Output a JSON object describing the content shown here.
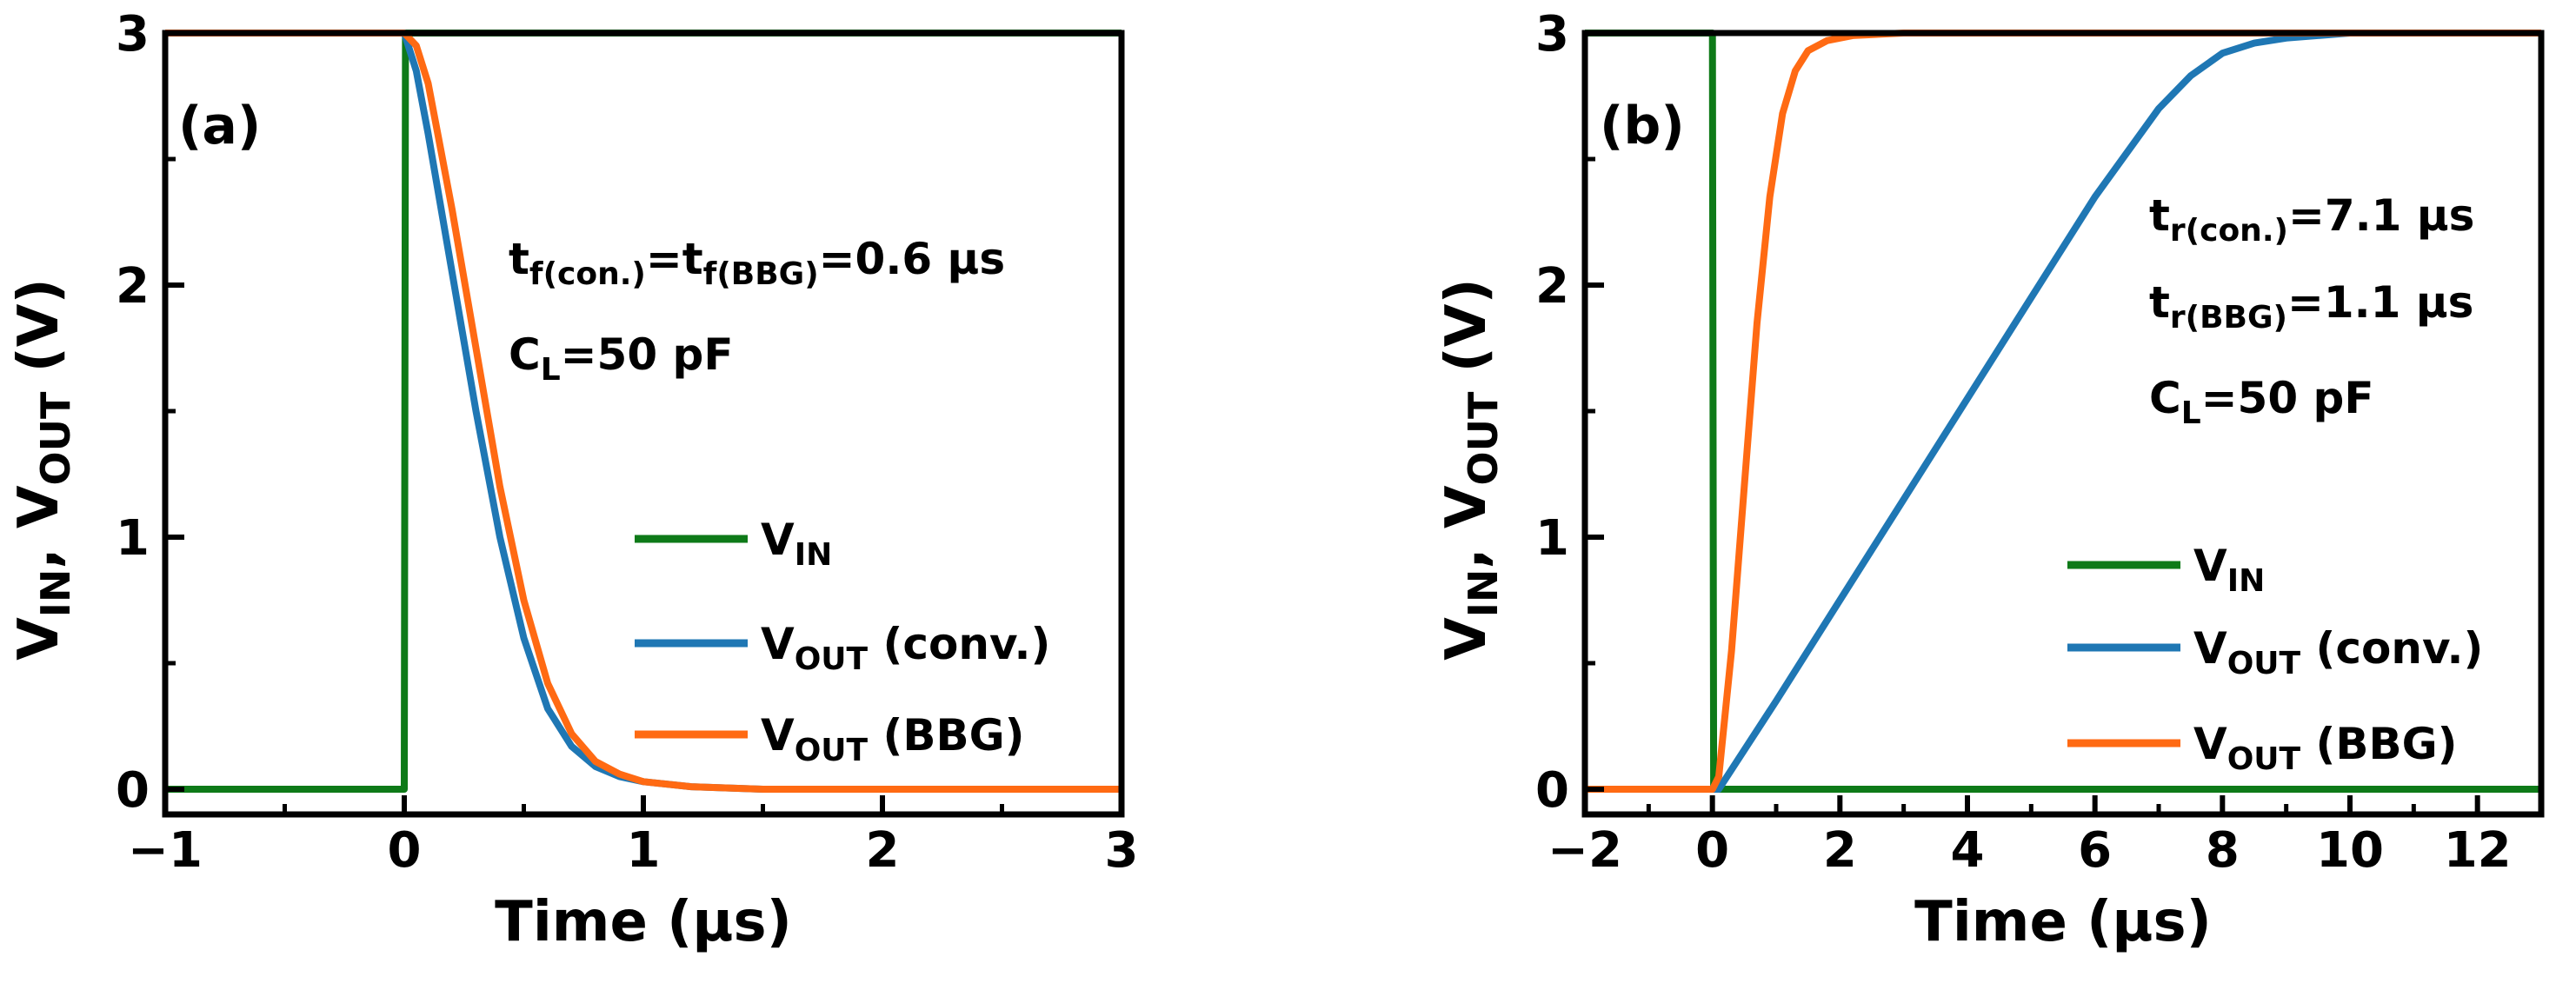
{
  "chart_data": [
    {
      "type": "line",
      "panel_label": "(a)",
      "xlabel": "Time (μs)",
      "ylabel": {
        "p1": "V",
        "s1": "IN",
        "p2": ", V",
        "s2": "OUT",
        "p3": " (V)"
      },
      "xlim": [
        -1,
        3
      ],
      "ylim": [
        -0.1,
        3.0
      ],
      "xticks": [
        -1,
        0,
        1,
        2,
        3
      ],
      "xtick_labels": [
        "−1",
        "0",
        "1",
        "2",
        "3"
      ],
      "yticks": [
        0,
        1,
        2,
        3
      ],
      "ytick_labels": [
        "0",
        "1",
        "2",
        "3"
      ],
      "grid": false,
      "legend_position": "lower-right",
      "annotations": [
        [
          {
            "t": "t"
          },
          {
            "t": "f(con.)",
            "sub": true
          },
          {
            "t": "=t"
          },
          {
            "t": "f(BBG)",
            "sub": true
          },
          {
            "t": "=0.6 μs"
          }
        ],
        [
          {
            "t": "C"
          },
          {
            "t": "L",
            "sub": true
          },
          {
            "t": "=50 pF"
          }
        ]
      ],
      "series": [
        {
          "legend": [
            {
              "t": "V"
            },
            {
              "t": "IN",
              "sub": true
            }
          ],
          "color": "#0e7a18",
          "x": [
            -1,
            0,
            0.005,
            3
          ],
          "y": [
            0,
            0,
            3,
            3
          ]
        },
        {
          "legend": [
            {
              "t": "V"
            },
            {
              "t": "OUT",
              "sub": true
            },
            {
              "t": " (conv.)"
            }
          ],
          "color": "#1f77b4",
          "x": [
            -1,
            0,
            0.05,
            0.1,
            0.2,
            0.3,
            0.4,
            0.5,
            0.6,
            0.7,
            0.8,
            0.9,
            1.0,
            1.2,
            1.5,
            2,
            3
          ],
          "y": [
            3,
            3,
            2.85,
            2.6,
            2.05,
            1.5,
            1.0,
            0.6,
            0.32,
            0.17,
            0.09,
            0.05,
            0.03,
            0.01,
            0,
            0,
            0
          ]
        },
        {
          "legend": [
            {
              "t": "V"
            },
            {
              "t": "OUT",
              "sub": true
            },
            {
              "t": " (BBG)"
            }
          ],
          "color": "#ff6a13",
          "x": [
            -1,
            0,
            0.05,
            0.1,
            0.15,
            0.2,
            0.3,
            0.4,
            0.5,
            0.6,
            0.7,
            0.8,
            0.9,
            1.0,
            1.2,
            1.5,
            2,
            3
          ],
          "y": [
            3,
            3,
            2.95,
            2.8,
            2.55,
            2.3,
            1.75,
            1.2,
            0.75,
            0.42,
            0.22,
            0.11,
            0.06,
            0.03,
            0.01,
            0,
            0,
            0
          ]
        }
      ]
    },
    {
      "type": "line",
      "panel_label": "(b)",
      "xlabel": "Time (μs)",
      "ylabel": {
        "p1": "V",
        "s1": "IN",
        "p2": ", V",
        "s2": "OUT",
        "p3": " (V)"
      },
      "xlim": [
        -2,
        13
      ],
      "ylim": [
        -0.1,
        3.0
      ],
      "xticks": [
        -2,
        0,
        2,
        4,
        6,
        8,
        10,
        12
      ],
      "xtick_labels": [
        "−2",
        "0",
        "2",
        "4",
        "6",
        "8",
        "10",
        "12"
      ],
      "yticks": [
        0,
        1,
        2,
        3
      ],
      "ytick_labels": [
        "0",
        "1",
        "2",
        "3"
      ],
      "grid": false,
      "legend_position": "lower-right",
      "annotations": [
        [
          {
            "t": "t"
          },
          {
            "t": "r(con.)",
            "sub": true
          },
          {
            "t": "=7.1 μs"
          }
        ],
        [
          {
            "t": "t"
          },
          {
            "t": "r(BBG)",
            "sub": true
          },
          {
            "t": "=1.1 μs"
          }
        ],
        [
          {
            "t": "C"
          },
          {
            "t": "L",
            "sub": true
          },
          {
            "t": "=50 pF"
          }
        ]
      ],
      "series": [
        {
          "legend": [
            {
              "t": "V"
            },
            {
              "t": "IN",
              "sub": true
            }
          ],
          "color": "#0e7a18",
          "x": [
            -2,
            0,
            0.02,
            13
          ],
          "y": [
            3,
            3,
            0,
            0
          ]
        },
        {
          "legend": [
            {
              "t": "V"
            },
            {
              "t": "OUT",
              "sub": true
            },
            {
              "t": " (conv.)"
            }
          ],
          "color": "#1f77b4",
          "x": [
            -2,
            0,
            0.1,
            1,
            2,
            3,
            4,
            5,
            6,
            7,
            7.5,
            8,
            8.5,
            9,
            10,
            11,
            13
          ],
          "y": [
            0,
            0,
            0,
            0.35,
            0.75,
            1.15,
            1.55,
            1.95,
            2.35,
            2.7,
            2.83,
            2.92,
            2.96,
            2.98,
            3,
            3,
            3
          ]
        },
        {
          "legend": [
            {
              "t": "V"
            },
            {
              "t": "OUT",
              "sub": true
            },
            {
              "t": " (BBG)"
            }
          ],
          "color": "#ff6a13",
          "x": [
            -2,
            0,
            0.1,
            0.3,
            0.5,
            0.7,
            0.9,
            1.1,
            1.3,
            1.5,
            1.8,
            2.2,
            3,
            13
          ],
          "y": [
            0,
            0,
            0.05,
            0.55,
            1.2,
            1.85,
            2.35,
            2.68,
            2.85,
            2.93,
            2.97,
            2.99,
            3,
            3
          ]
        }
      ]
    }
  ]
}
